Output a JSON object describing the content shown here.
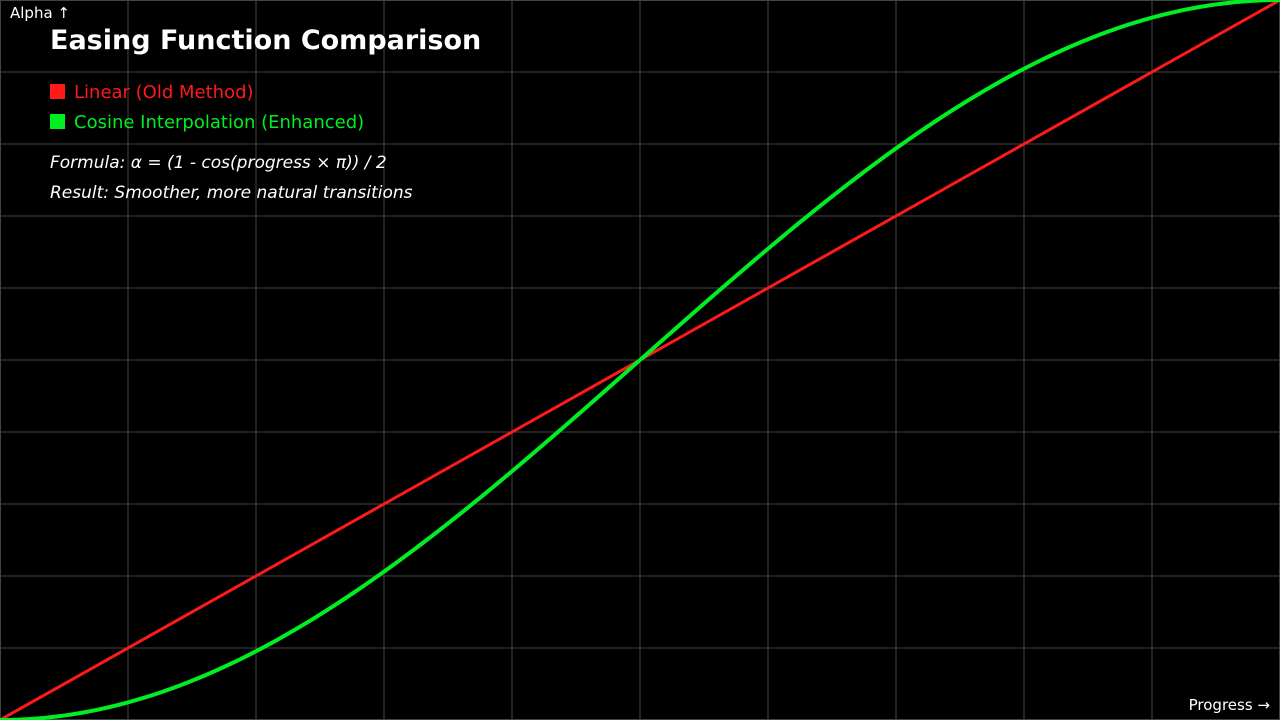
{
  "chart_data": {
    "type": "line",
    "title": "Easing Function Comparison",
    "xlabel": "Progress →",
    "ylabel": "Alpha ↑",
    "xlim": [
      0,
      1
    ],
    "ylim": [
      0,
      1
    ],
    "grid": true,
    "legend_position": "top-left",
    "background_color": "#000000",
    "grid_color": "#444444",
    "text_color": "#ffffff",
    "series": [
      {
        "name": "Linear (Old Method)",
        "color": "#ff1a1a",
        "x": [
          0,
          0.1,
          0.2,
          0.3,
          0.4,
          0.5,
          0.6,
          0.7,
          0.8,
          0.9,
          1
        ],
        "y": [
          0,
          0.1,
          0.2,
          0.3,
          0.4,
          0.5,
          0.6,
          0.7,
          0.8,
          0.9,
          1
        ]
      },
      {
        "name": "Cosine Interpolation (Enhanced)",
        "color": "#00ee22",
        "x": [
          0,
          0.05,
          0.1,
          0.15,
          0.2,
          0.25,
          0.3,
          0.35,
          0.4,
          0.45,
          0.5,
          0.55,
          0.6,
          0.65,
          0.7,
          0.75,
          0.8,
          0.85,
          0.9,
          0.95,
          1
        ],
        "y": [
          0,
          0.0062,
          0.0245,
          0.0545,
          0.0955,
          0.1464,
          0.2061,
          0.273,
          0.3455,
          0.4218,
          0.5,
          0.5782,
          0.6545,
          0.727,
          0.7939,
          0.8536,
          0.9045,
          0.9455,
          0.9755,
          0.9938,
          1
        ]
      }
    ],
    "annotations": [
      "Formula: α = (1 - cos(progress × π)) / 2",
      "Result: Smoother, more natural transitions"
    ]
  }
}
